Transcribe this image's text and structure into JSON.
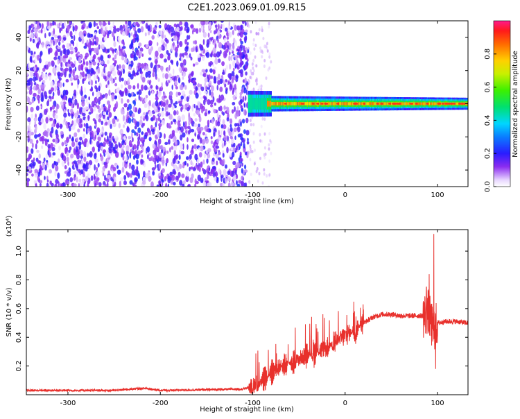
{
  "title": "C2E1.2023.069.01.09.R15",
  "chart_data": [
    {
      "type": "heatmap",
      "xlabel": "Height of straight line (km)",
      "ylabel": "Frequency (Hz)",
      "xlim": [
        -345,
        133
      ],
      "ylim": [
        -50,
        50
      ],
      "xticks": [
        -300,
        -200,
        -100,
        0,
        100
      ],
      "yticks": [
        -40,
        -20,
        0,
        20,
        40
      ],
      "colorbar": {
        "label": "Normalized spectral amplitude",
        "range": [
          0.0,
          1.0
        ],
        "ticks": [
          0.0,
          0.2,
          0.4,
          0.6,
          0.8
        ],
        "tick_labels": [
          "0.0",
          "0.2",
          "0.4",
          "0.6",
          "0.8"
        ]
      },
      "regions": [
        {
          "desc": "broadband noise",
          "x": [
            -345,
            -105
          ],
          "y": [
            -50,
            50
          ],
          "amplitude": [
            0.02,
            0.2
          ]
        },
        {
          "desc": "faint noise fringe",
          "x": [
            -105,
            -80
          ],
          "y": [
            -50,
            50
          ],
          "amplitude": [
            0.0,
            0.06
          ]
        },
        {
          "desc": "signal band",
          "x": [
            -105,
            133
          ],
          "y_center": 0,
          "y_halfwidth": 4,
          "amplitude": [
            0.3,
            1.0
          ]
        }
      ],
      "grid": false
    },
    {
      "type": "line",
      "xlabel": "Height of straight line (km)",
      "ylabel": "SNR (10 * v/v)",
      "y_scale_note": "(x10⁴)",
      "xlim": [
        -345,
        133
      ],
      "ylim": [
        0.0,
        1.15
      ],
      "xticks": [
        -300,
        -200,
        -100,
        0,
        100
      ],
      "yticks": [
        0.2,
        0.4,
        0.6,
        0.8,
        1.0
      ],
      "series": [
        {
          "color": "#e8302c",
          "x": [
            -345,
            -300,
            -250,
            -230,
            -215,
            -200,
            -150,
            -110,
            -100,
            -90,
            -80,
            -70,
            -60,
            -50,
            -40,
            -30,
            -20,
            -10,
            0,
            10,
            20,
            30,
            40,
            50,
            60,
            70,
            80,
            85,
            90,
            95,
            100,
            110,
            120,
            133
          ],
          "values": [
            0.03,
            0.03,
            0.03,
            0.04,
            0.045,
            0.03,
            0.035,
            0.04,
            0.06,
            0.09,
            0.15,
            0.2,
            0.22,
            0.25,
            0.28,
            0.3,
            0.33,
            0.37,
            0.41,
            0.45,
            0.5,
            0.54,
            0.56,
            0.56,
            0.55,
            0.55,
            0.55,
            0.55,
            0.58,
            0.45,
            0.5,
            0.51,
            0.51,
            0.5
          ],
          "spikes": [
            {
              "x": 96,
              "y": 1.12
            },
            {
              "x": 91,
              "y": 0.84
            },
            {
              "x": 88,
              "y": 0.75
            },
            {
              "x": 98,
              "y": 0.18
            }
          ]
        }
      ],
      "grid": false
    }
  ],
  "colors": {
    "line": "#e8302c",
    "noise": "#7a1fe0",
    "band_core": "#ff2a1a",
    "background": "#ffffff"
  }
}
